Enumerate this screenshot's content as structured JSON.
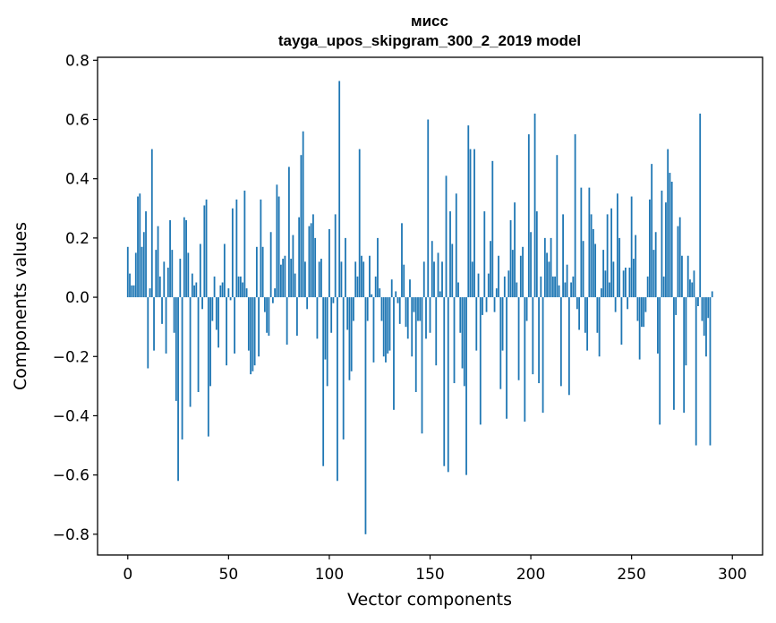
{
  "chart_data": {
    "type": "bar",
    "title_line1": "мисс",
    "title_line2": "tayga_upos_skipgram_300_2_2019 model",
    "xlabel": "Vector components",
    "ylabel": "Components values",
    "xlim": [
      -15,
      315
    ],
    "ylim": [
      -0.87,
      0.81
    ],
    "xticks": [
      0,
      50,
      100,
      150,
      200,
      250,
      300
    ],
    "xtick_labels": [
      "0",
      "50",
      "100",
      "150",
      "200",
      "250",
      "300"
    ],
    "yticks": [
      -0.8,
      -0.6,
      -0.4,
      -0.2,
      0.0,
      0.2,
      0.4,
      0.6,
      0.8
    ],
    "ytick_labels": [
      "−0.8",
      "−0.6",
      "−0.4",
      "−0.2",
      "0.0",
      "0.2",
      "0.4",
      "0.6",
      "0.8"
    ],
    "bar_color": "#1f77b4",
    "values": [
      0.17,
      0.08,
      0.04,
      0.04,
      0.15,
      0.34,
      0.35,
      0.17,
      0.22,
      0.29,
      -0.24,
      0.03,
      0.5,
      -0.18,
      0.16,
      0.24,
      0.07,
      -0.09,
      0.12,
      -0.19,
      0.1,
      0.26,
      0.16,
      -0.12,
      -0.35,
      -0.62,
      0.13,
      -0.48,
      0.27,
      0.26,
      0.15,
      -0.37,
      0.08,
      0.04,
      0.05,
      -0.32,
      0.18,
      -0.04,
      0.31,
      0.33,
      -0.47,
      -0.3,
      -0.08,
      0.07,
      -0.11,
      -0.17,
      0.04,
      0.05,
      0.18,
      -0.23,
      0.03,
      -0.01,
      0.3,
      -0.19,
      0.33,
      0.07,
      0.07,
      0.05,
      0.36,
      0.03,
      -0.18,
      -0.26,
      -0.25,
      -0.23,
      0.17,
      -0.2,
      0.33,
      0.17,
      -0.05,
      -0.12,
      -0.13,
      0.22,
      -0.02,
      0.03,
      0.38,
      0.34,
      0.11,
      0.13,
      0.14,
      -0.16,
      0.44,
      0.13,
      0.21,
      0.08,
      -0.13,
      0.27,
      0.48,
      0.56,
      0.12,
      -0.04,
      0.24,
      0.25,
      0.28,
      0.2,
      -0.14,
      0.12,
      0.13,
      -0.57,
      -0.21,
      -0.3,
      0.23,
      -0.12,
      -0.02,
      0.28,
      -0.62,
      0.73,
      0.12,
      -0.48,
      0.2,
      -0.11,
      -0.28,
      -0.25,
      -0.08,
      0.12,
      0.07,
      0.5,
      0.14,
      0.12,
      -0.8,
      -0.08,
      0.14,
      0.01,
      -0.22,
      0.07,
      0.2,
      0.03,
      -0.08,
      -0.2,
      -0.22,
      -0.19,
      -0.18,
      0.06,
      -0.38,
      0.02,
      -0.02,
      -0.09,
      0.25,
      0.11,
      -0.1,
      -0.14,
      0.06,
      -0.2,
      -0.05,
      -0.32,
      -0.08,
      -0.08,
      -0.46,
      0.12,
      -0.14,
      0.6,
      -0.12,
      0.19,
      0.12,
      -0.23,
      0.15,
      0.02,
      0.12,
      -0.57,
      0.41,
      -0.59,
      0.29,
      0.18,
      -0.29,
      0.35,
      0.05,
      -0.12,
      -0.24,
      -0.3,
      -0.6,
      0.58,
      0.5,
      0.12,
      0.5,
      -0.18,
      0.08,
      -0.43,
      -0.06,
      0.29,
      -0.05,
      0.08,
      0.19,
      0.46,
      -0.05,
      0.03,
      0.14,
      -0.31,
      -0.18,
      0.07,
      -0.41,
      0.09,
      0.26,
      0.16,
      0.32,
      0.05,
      -0.28,
      0.14,
      0.17,
      -0.42,
      -0.08,
      0.55,
      0.22,
      -0.26,
      0.62,
      0.29,
      -0.29,
      0.07,
      -0.39,
      0.2,
      0.15,
      0.12,
      0.2,
      0.07,
      0.07,
      0.48,
      0.04,
      -0.3,
      0.28,
      0.05,
      0.11,
      -0.33,
      0.05,
      0.07,
      0.55,
      -0.04,
      -0.11,
      0.37,
      0.19,
      -0.12,
      -0.18,
      0.37,
      0.28,
      0.23,
      0.18,
      -0.12,
      -0.2,
      0.03,
      0.16,
      0.09,
      0.28,
      0.05,
      0.3,
      0.12,
      -0.05,
      0.35,
      0.2,
      -0.16,
      0.09,
      0.1,
      -0.04,
      0.1,
      0.34,
      0.13,
      0.21,
      -0.08,
      -0.21,
      -0.1,
      -0.1,
      -0.05,
      0.07,
      0.33,
      0.45,
      0.16,
      0.22,
      -0.19,
      -0.43,
      0.36,
      0.07,
      0.32,
      0.5,
      0.42,
      0.39,
      -0.38,
      -0.06,
      0.24,
      0.27,
      0.14,
      -0.39,
      -0.23,
      0.14,
      0.06,
      0.05,
      0.09,
      -0.5,
      -0.03,
      0.62,
      -0.08,
      -0.13,
      -0.2,
      -0.07,
      -0.5,
      0.02
    ]
  }
}
